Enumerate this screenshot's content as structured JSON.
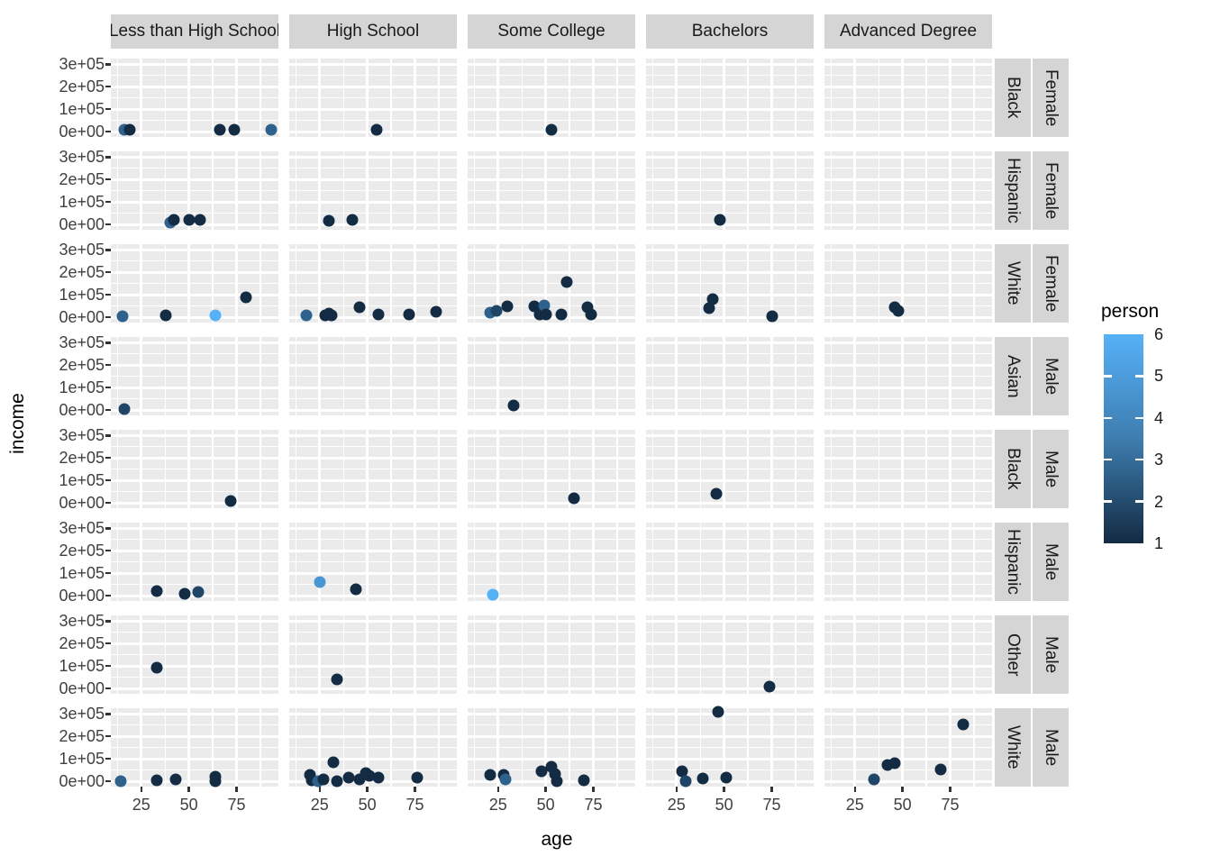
{
  "chart_data": {
    "type": "scatter",
    "xlabel": "age",
    "ylabel": "income",
    "x_ticks": [
      25,
      50,
      75
    ],
    "x_range": [
      9,
      97
    ],
    "y_ticks": [
      {
        "value": 0,
        "label": "0e+00"
      },
      {
        "value": 100000,
        "label": "1e+05"
      },
      {
        "value": 200000,
        "label": "2e+05"
      },
      {
        "value": 300000,
        "label": "3e+05"
      }
    ],
    "y_range": [
      -24000,
      325000
    ],
    "grid": true,
    "facet_columns": [
      "Less than High School",
      "High School",
      "Some College",
      "Bachelors",
      "Advanced Degree"
    ],
    "facet_rows": [
      {
        "race": "Black",
        "sex": "Female"
      },
      {
        "race": "Hispanic",
        "sex": "Female"
      },
      {
        "race": "White",
        "sex": "Female"
      },
      {
        "race": "Asian",
        "sex": "Male"
      },
      {
        "race": "Black",
        "sex": "Male"
      },
      {
        "race": "Hispanic",
        "sex": "Male"
      },
      {
        "race": "Other",
        "sex": "Male"
      },
      {
        "race": "White",
        "sex": "Male"
      }
    ],
    "legend": {
      "title": "person",
      "position": "right",
      "ticks": [
        6,
        5,
        4,
        3,
        2,
        1
      ],
      "low_color": "#132B43",
      "high_color": "#56B1F7"
    },
    "person_colors": {
      "1": "#132B43",
      "2": "#204667",
      "3": "#2E618B",
      "4": "#3B7CAF",
      "5": "#4896D3",
      "6": "#56B1F7"
    },
    "points_format": [
      "row_index",
      "col_index",
      "age",
      "income",
      "person"
    ],
    "points": [
      [
        0,
        0,
        16,
        8000,
        3
      ],
      [
        0,
        0,
        19,
        8000,
        1
      ],
      [
        0,
        0,
        66,
        10000,
        1
      ],
      [
        0,
        0,
        74,
        10000,
        1
      ],
      [
        0,
        0,
        93,
        8000,
        3
      ],
      [
        0,
        1,
        55,
        8000,
        1
      ],
      [
        0,
        2,
        53,
        8000,
        1
      ],
      [
        1,
        0,
        40,
        10000,
        3
      ],
      [
        1,
        0,
        42,
        22000,
        1
      ],
      [
        1,
        0,
        50,
        22000,
        1
      ],
      [
        1,
        0,
        56,
        22000,
        1
      ],
      [
        1,
        1,
        30,
        15000,
        1
      ],
      [
        1,
        1,
        42,
        20000,
        1
      ],
      [
        1,
        3,
        48,
        22000,
        1
      ],
      [
        2,
        0,
        15,
        5000,
        3
      ],
      [
        2,
        0,
        38,
        9000,
        1
      ],
      [
        2,
        0,
        64,
        10000,
        6
      ],
      [
        2,
        0,
        80,
        88000,
        1
      ],
      [
        2,
        1,
        18,
        10000,
        3
      ],
      [
        2,
        1,
        28,
        10000,
        1
      ],
      [
        2,
        1,
        30,
        18000,
        1
      ],
      [
        2,
        1,
        31,
        7000,
        1
      ],
      [
        2,
        1,
        46,
        43000,
        1
      ],
      [
        2,
        1,
        56,
        14000,
        1
      ],
      [
        2,
        1,
        72,
        12000,
        1
      ],
      [
        2,
        1,
        86,
        23000,
        1
      ],
      [
        2,
        2,
        21,
        19000,
        3
      ],
      [
        2,
        2,
        24,
        30000,
        2
      ],
      [
        2,
        2,
        30,
        47000,
        1
      ],
      [
        2,
        2,
        44,
        47000,
        1
      ],
      [
        2,
        2,
        47,
        13000,
        1
      ],
      [
        2,
        2,
        49,
        54000,
        3
      ],
      [
        2,
        2,
        50,
        13000,
        1
      ],
      [
        2,
        2,
        58,
        14000,
        1
      ],
      [
        2,
        2,
        61,
        155000,
        1
      ],
      [
        2,
        2,
        72,
        43000,
        1
      ],
      [
        2,
        2,
        74,
        14000,
        1
      ],
      [
        2,
        3,
        42,
        40000,
        1
      ],
      [
        2,
        3,
        44,
        80000,
        1
      ],
      [
        2,
        3,
        75,
        6000,
        1
      ],
      [
        2,
        4,
        46,
        46000,
        1
      ],
      [
        2,
        4,
        48,
        27000,
        1
      ],
      [
        3,
        0,
        16,
        3000,
        2
      ],
      [
        3,
        2,
        33,
        22000,
        1
      ],
      [
        4,
        0,
        72,
        10000,
        1
      ],
      [
        4,
        2,
        65,
        20000,
        1
      ],
      [
        4,
        3,
        46,
        42000,
        1
      ],
      [
        5,
        0,
        33,
        20000,
        1
      ],
      [
        5,
        0,
        48,
        8000,
        1
      ],
      [
        5,
        0,
        55,
        15000,
        2
      ],
      [
        5,
        1,
        25,
        62000,
        5
      ],
      [
        5,
        1,
        44,
        28000,
        1
      ],
      [
        5,
        2,
        22,
        4000,
        6
      ],
      [
        6,
        0,
        33,
        93000,
        1
      ],
      [
        6,
        1,
        34,
        40000,
        1
      ],
      [
        6,
        3,
        74,
        10000,
        1
      ],
      [
        7,
        0,
        14,
        2000,
        3
      ],
      [
        7,
        0,
        33,
        5000,
        1
      ],
      [
        7,
        0,
        43,
        10000,
        1
      ],
      [
        7,
        0,
        64,
        21000,
        1
      ],
      [
        7,
        0,
        64,
        2000,
        1
      ],
      [
        7,
        1,
        20,
        29000,
        1
      ],
      [
        7,
        1,
        21,
        5000,
        1
      ],
      [
        7,
        1,
        24,
        1000,
        3
      ],
      [
        7,
        1,
        27,
        9000,
        1
      ],
      [
        7,
        1,
        32,
        83000,
        1
      ],
      [
        7,
        1,
        34,
        1000,
        1
      ],
      [
        7,
        1,
        40,
        16000,
        1
      ],
      [
        7,
        1,
        46,
        9000,
        1
      ],
      [
        7,
        1,
        49,
        36000,
        1
      ],
      [
        7,
        1,
        51,
        26000,
        1
      ],
      [
        7,
        1,
        56,
        16000,
        1
      ],
      [
        7,
        1,
        76,
        18000,
        1
      ],
      [
        7,
        2,
        21,
        30000,
        1
      ],
      [
        7,
        2,
        28,
        30000,
        1
      ],
      [
        7,
        2,
        29,
        10000,
        3
      ],
      [
        7,
        2,
        48,
        43000,
        1
      ],
      [
        7,
        2,
        53,
        66000,
        1
      ],
      [
        7,
        2,
        55,
        32000,
        1
      ],
      [
        7,
        2,
        56,
        2000,
        1
      ],
      [
        7,
        2,
        70,
        5000,
        1
      ],
      [
        7,
        3,
        28,
        46000,
        1
      ],
      [
        7,
        3,
        30,
        1000,
        2
      ],
      [
        7,
        3,
        39,
        13000,
        1
      ],
      [
        7,
        3,
        47,
        310000,
        1
      ],
      [
        7,
        3,
        51,
        16000,
        1
      ],
      [
        7,
        4,
        35,
        9000,
        2
      ],
      [
        7,
        4,
        42,
        72000,
        1
      ],
      [
        7,
        4,
        46,
        80000,
        1
      ],
      [
        7,
        4,
        70,
        54000,
        1
      ],
      [
        7,
        4,
        82,
        253000,
        1
      ]
    ]
  },
  "styles": {
    "panel_bg": "#EBEBEB",
    "strip_bg": "#D5D5D5",
    "grid_color": "#FFFFFF",
    "tick_text_color": "#404040"
  }
}
